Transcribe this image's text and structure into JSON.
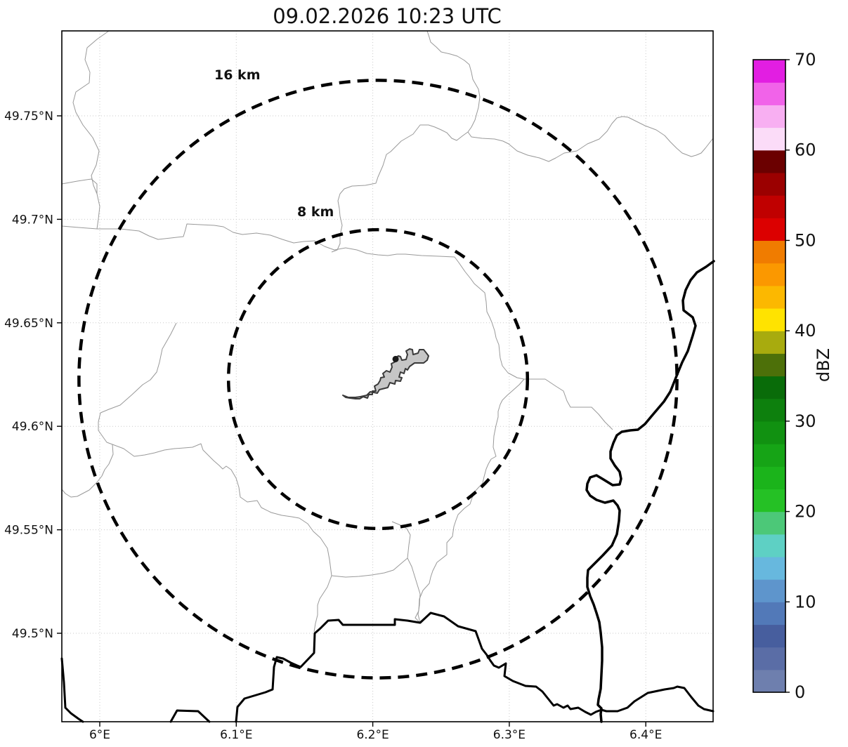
{
  "title": "09.02.2026 10:23 UTC",
  "axes": {
    "lon_ticks": [
      {
        "value": 6.0,
        "label": "6°E"
      },
      {
        "value": 6.1,
        "label": "6.1°E"
      },
      {
        "value": 6.2,
        "label": "6.2°E"
      },
      {
        "value": 6.3,
        "label": "6.3°E"
      },
      {
        "value": 6.4,
        "label": "6.4°E"
      }
    ],
    "lat_ticks": [
      {
        "value": 49.75,
        "label": "49.75°N"
      },
      {
        "value": 49.7,
        "label": "49.7°N"
      },
      {
        "value": 49.65,
        "label": "49.65°N"
      },
      {
        "value": 49.6,
        "label": "49.6°N"
      },
      {
        "value": 49.55,
        "label": "49.55°N"
      },
      {
        "value": 49.5,
        "label": "49.5°N"
      }
    ]
  },
  "range_rings": {
    "center": {
      "lon": 6.2038,
      "lat": 49.6228
    },
    "rings": [
      {
        "km": 16,
        "label": "16 km"
      },
      {
        "km": 8,
        "label": "8 km"
      }
    ]
  },
  "colorbar": {
    "label": "dBZ",
    "min": 0,
    "max": 70,
    "step": 2.5,
    "ticks": [
      {
        "value": 0,
        "label": "0"
      },
      {
        "value": 10,
        "label": "10"
      },
      {
        "value": 20,
        "label": "20"
      },
      {
        "value": 30,
        "label": "30"
      },
      {
        "value": 40,
        "label": "40"
      },
      {
        "value": 50,
        "label": "50"
      },
      {
        "value": 60,
        "label": "60"
      },
      {
        "value": 70,
        "label": "70"
      }
    ],
    "segment_colors_bottom_to_top": [
      "#6e7fae",
      "#5a6da6",
      "#475e9e",
      "#5279b8",
      "#5e95cc",
      "#67b8de",
      "#5ed0c4",
      "#4cc878",
      "#25c125",
      "#1bb41b",
      "#16a416",
      "#119111",
      "#0d800d",
      "#096c09",
      "#4d7009",
      "#a8ab0e",
      "#ffe300",
      "#fcb800",
      "#fb9800",
      "#f07c00",
      "#dc0000",
      "#c00000",
      "#9b0000",
      "#6b0000",
      "#fbdcf8",
      "#f8aff2",
      "#f163e9",
      "#e21ee2"
    ]
  },
  "map": {
    "radar_site": {
      "lon": 6.2167,
      "lat": 49.6325
    },
    "layers": [
      {
        "name": "commune-boundary",
        "class": "boundary",
        "top": false,
        "paths": [
          "M 155,44 L 138,56 124,68 121,85 128,103 127,118 108,131 104,146 108,160 118,178 132,196 141,215 137,235 130,250 133,264 138,276 142,294 140,312 138,326",
          "M 88,262 L 110,258 130,255 138,262 138,276",
          "M 88,322 L 112,324 138,326 171,326 198,329 212,336 225,341 243,339 261,337 264,327 266,319 285,320 305,321 318,323 332,331 345,334 365,332 385,335 402,341 418,346 432,344 448,343 462,351 476,356 492,353 508,356 522,361 538,363 552,364 565,362 577,362 600,364 625,365 647,366 653,374 662,387 670,397 675,404 690,417 692,430 693,444 697,452 700,459",
          "M 608,44 L 611,53 613,60 621,67 628,74 641,77 651,80 661,86 668,92 671,103 673,113 681,127 683,138 681,153 676,171 671,181 666,188",
          "M 666,188 L 671,195 686,197 704,198 716,201 724,205 736,215 751,221 768,225 781,230 791,225 803,218 821,215 836,205 853,198 864,187 871,176 878,168 886,166 894,167 906,173 918,179 934,185 946,193 954,202 963,211 971,218 984,223 991,221 998,218 1004,211 1011,202 1015,197",
          "M 666,188 L 659,193 650,200 643,197 636,189 628,185 619,181 610,178 598,178 588,191 571,201 556,216 550,220 545,236 538,252 535,261 520,264 501,265 490,269 484,276 481,286 483,297 484,308 487,321 484,335 484,347 480,356 472,359",
          "M 251,460 L 243,476 231,497 227,516 223,530 214,541 203,548 188,562 171,577 155,583 143,588",
          "M 143,588 L 140,601 140,613 147,623 152,630 160,633 161,647 155,661 149,669 145,678 138,687 127,698 110,707 101,708 93,703 88,697",
          "M 160,633 L 176,639 191,650 206,648 220,645 234,641 248,639 262,638 274,637 286,632 289,641 296,648 304,656 312,663 317,668 322,664 329,669 336,681 340,694 342,708 352,715 366,713 372,723 386,730 401,734 415,736 426,738 438,746 446,757 456,766 466,781 469,797 472,820 466,836 455,853 452,862 452,876 449,888 447,900",
          "M 472,820 L 492,822 511,821 529,819 547,816 560,812 574,800 580,795 586,807 594,833 598,846 597,862 595,875 598,887",
          "M 558,743 L 570,748 579,753 584,762 582,776 580,795",
          "M 700,459 L 704,471 706,481 710,491 712,510 715,521 723,531 736,538 746,540 752,540 766,540 776,540 791,550 802,557 807,571 812,580 826,580 842,580 852,590 861,601 872,612",
          "M 746,540 L 739,548 730,556 722,563 715,570 712,576 709,586 709,594 706,606 703,621 702,637 706,650 699,654 695,661 692,668 689,679 687,688 676,700 672,709 669,718 661,724 652,733 649,741 646,750 644,764 636,773 636,790 622,801 616,813 613,822 611,831 602,841 597,853 596,870 591,880 598,887"
        ]
      },
      {
        "name": "country-border",
        "class": "border",
        "top": false,
        "paths": [
          "M 88,938 L 91,972 93,1008 101,1016 112,1024 118,1028",
          "M 243,1028 L 252,1012 282,1013 298,1028",
          "M 336,1028 L 338,1007 348,995 378,986 388,982 390,950 394,936 403,938 414,944 423,948 428,950 447,930 448,902 456,895 467,884 482,883 488,890 562,890 562,882 580,884 598,887 613,873 632,878 652,892 677,899 686,924 693,933 698,941 703,948 710,951 720,945 718,963 730,970 748,977 763,978 772,985 788,1005 793,1003 802,1008 808,1005 812,1010 823,1008 833,1014 841,1018 848,1014 856,1011 863,1013 879,1013 893,1008 903,999 922,987 946,982 959,980 964,978 974,980 984,993 994,1005 1002,1010 1015,1013"
        ]
      },
      {
        "name": "river-border",
        "class": "river",
        "top": false,
        "paths": [
          "M 1016,372 L 1005,380 992,388 983,399 976,413 972,428 973,442 986,452 990,464 986,478 979,500 971,516 964,533 954,558 945,572 928,592 918,604 908,612 897,613 885,615 878,620 873,631 869,643 869,653 875,663 882,672 884,682 882,690 872,691 859,683 849,677 840,680 836,689 835,698 840,706 849,712 861,716 873,713 879,720 882,727 881,742 878,761 871,777 858,791 845,804 837,812 836,823 836,836 840,849 845,861 849,873 853,886 855,901 857,922 857,941 856,961 855,981 852,996 851,1004 856,1009 855,1017 856,1028"
        ]
      },
      {
        "name": "airport-outline",
        "class": "airport",
        "top": true,
        "paths": [
          "M 488,563 L 492,566 498,567 506,568 512,568 517,565 523,567 525,562 530,562 530,557 535,557 533,550 538,547 541,542 542,538 547,537 545,532 550,528 555,530 558,523 557,518 563,515 562,510 567,507 570,508 572,513 578,512 580,505 578,500 583,497 587,498 588,505 595,503 597,498 603,498 607,503 610,507 608,513 603,517 590,517 583,522 580,527 577,525 575,532 570,530 568,537 572,538 570,543 563,542 562,547 555,545 552,552 540,555 537,560 527,558 522,563 513,565 506,566 496,566 488,563 Z"
        ]
      }
    ]
  }
}
